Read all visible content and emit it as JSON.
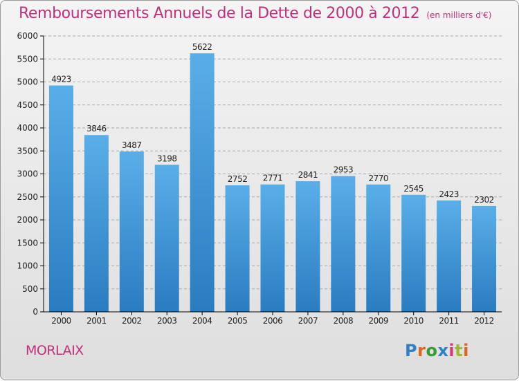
{
  "header": {
    "title": "Remboursements Annuels de la Dette de 2000 à 2012",
    "unit": "(en milliers d'€)"
  },
  "footer": {
    "city": "MORLAIX",
    "logo_letters": [
      "P",
      "r",
      "o",
      "x",
      "i",
      "t",
      "i"
    ]
  },
  "colors": {
    "title": "#c0307a",
    "bar_top": "#5aaee8",
    "bar_bottom": "#2a7cc0",
    "axis": "#000000",
    "grid": "#a8a8a8"
  },
  "chart_data": {
    "type": "bar",
    "categories": [
      "2000",
      "2001",
      "2002",
      "2003",
      "2004",
      "2005",
      "2006",
      "2007",
      "2008",
      "2009",
      "2010",
      "2011",
      "2012"
    ],
    "values": [
      4923,
      3846,
      3487,
      3198,
      5622,
      2752,
      2771,
      2841,
      2953,
      2770,
      2545,
      2423,
      2302
    ],
    "title": "Remboursements Annuels de la Dette de 2000 à 2012",
    "subtitle": "(en milliers d'€)",
    "xlabel": "",
    "ylabel": "",
    "ylim": [
      0,
      6000
    ],
    "yticks": [
      0,
      500,
      1000,
      1500,
      2000,
      2500,
      3000,
      3500,
      4000,
      4500,
      5000,
      5500,
      6000
    ],
    "grid": true,
    "data_labels": true
  }
}
